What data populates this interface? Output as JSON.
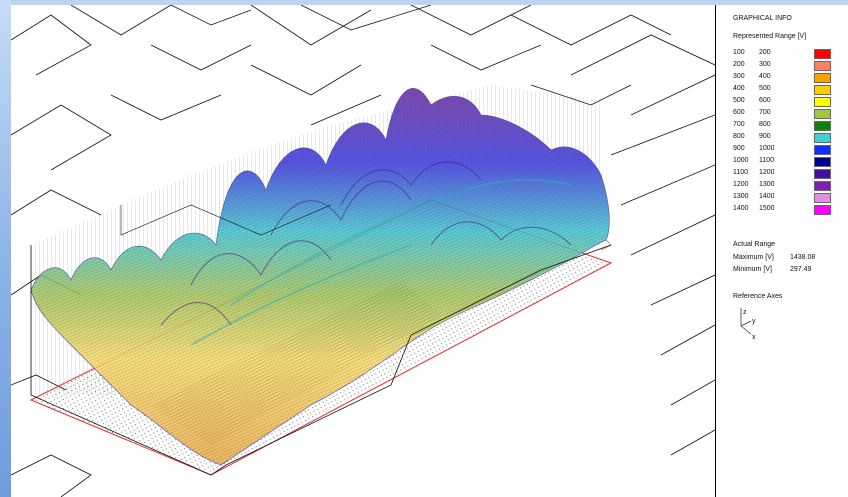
{
  "panel": {
    "title": "GRAPHICAL INFO",
    "represented_range_label": "Represented Range [V]",
    "ranges": [
      {
        "low": "100",
        "high": "200",
        "color": "#ff0000"
      },
      {
        "low": "200",
        "high": "300",
        "color": "#ff8060"
      },
      {
        "low": "300",
        "high": "400",
        "color": "#ffa000"
      },
      {
        "low": "400",
        "high": "500",
        "color": "#ffd000"
      },
      {
        "low": "500",
        "high": "600",
        "color": "#ffff00"
      },
      {
        "low": "600",
        "high": "700",
        "color": "#a0c840"
      },
      {
        "low": "700",
        "high": "800",
        "color": "#108010"
      },
      {
        "low": "800",
        "high": "900",
        "color": "#40d0d0"
      },
      {
        "low": "900",
        "high": "1000",
        "color": "#1030ff"
      },
      {
        "low": "1000",
        "high": "1100",
        "color": "#000090"
      },
      {
        "low": "1100",
        "high": "1200",
        "color": "#4010a0"
      },
      {
        "low": "1200",
        "high": "1300",
        "color": "#8020b0"
      },
      {
        "low": "1300",
        "high": "1400",
        "color": "#e090e0"
      },
      {
        "low": "1400",
        "high": "1500",
        "color": "#ff00ff"
      }
    ],
    "actual_range_label": "Actual Range",
    "maximum_label": "Maximum [V]",
    "maximum_value": "1438.08",
    "minimum_label": "Minimum [V]",
    "minimum_value": "297.49",
    "reference_axes_label": "Reference Axes",
    "axes": {
      "z": "z",
      "y": "y",
      "x": "x"
    }
  }
}
